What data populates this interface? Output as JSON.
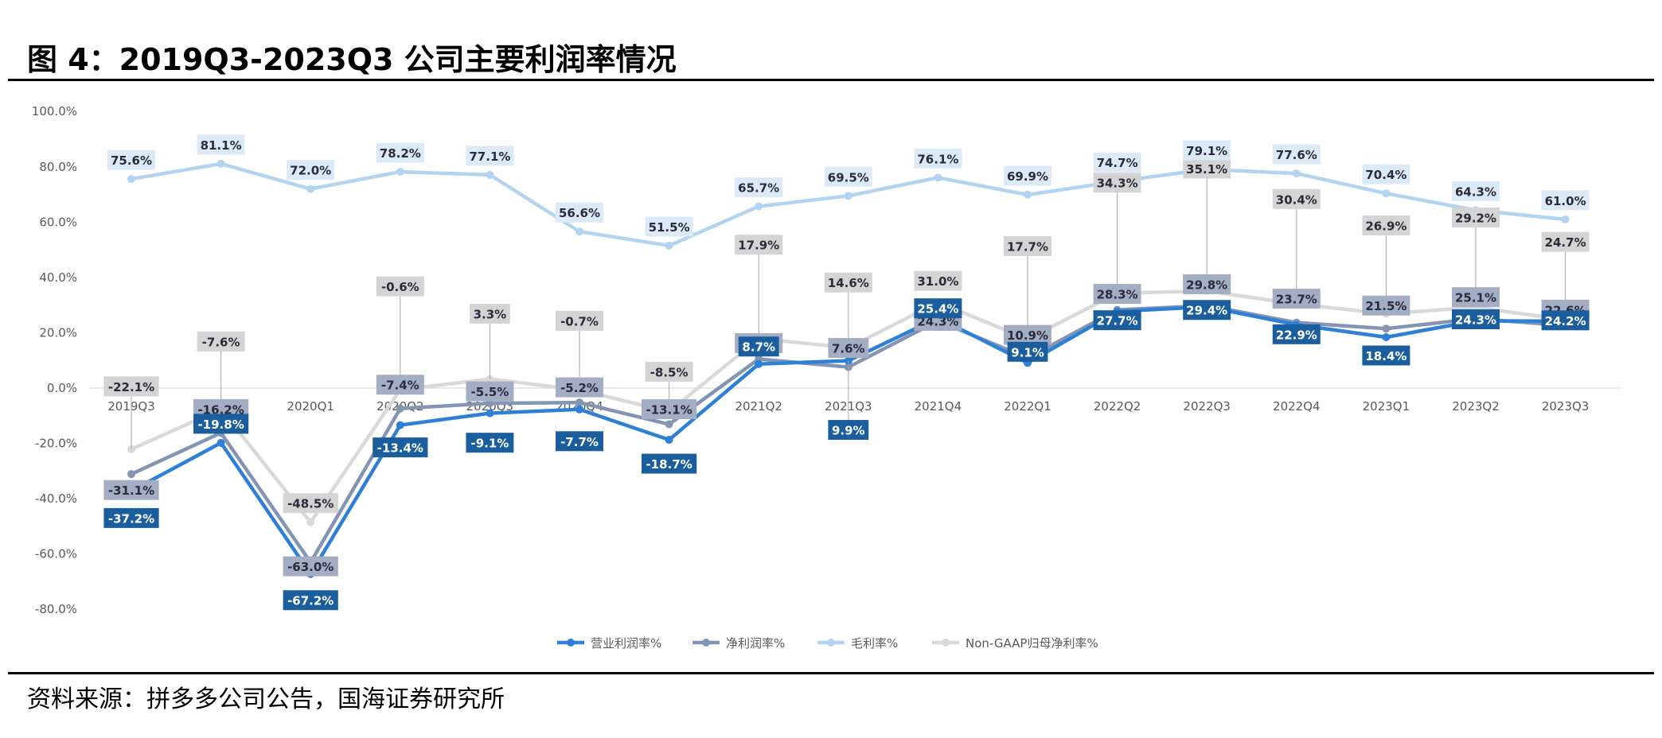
{
  "title": "图 4：2019Q3-2023Q3 公司主要利润率情况",
  "source": "资料来源：拼多多公司公告，国海证券研究所",
  "chart_data": {
    "type": "line",
    "categories": [
      "2019Q3",
      "2019Q4",
      "2020Q1",
      "2020Q2",
      "2020Q3",
      "2020Q4",
      "2021Q1",
      "2021Q2",
      "2021Q3",
      "2021Q4",
      "2022Q1",
      "2022Q2",
      "2022Q3",
      "2022Q4",
      "2023Q1",
      "2023Q2",
      "2023Q3"
    ],
    "ylim": [
      -80,
      100
    ],
    "yticks": [
      -80,
      -60,
      -40,
      -20,
      0,
      20,
      40,
      60,
      80,
      100
    ],
    "ytick_labels": [
      "-80.0%",
      "-60.0%",
      "-40.0%",
      "-20.0%",
      "0.0%",
      "20.0%",
      "40.0%",
      "60.0%",
      "80.0%",
      "100.0%"
    ],
    "grid": false,
    "legend_position": "bottom-center",
    "series": [
      {
        "name": "营业利润率%",
        "color": "#2E7FD6",
        "label_bg": "#1B5E9E",
        "label_fg": "#ffffff",
        "values": [
          -37.2,
          -19.8,
          -67.2,
          -13.4,
          -9.1,
          -7.7,
          -18.7,
          8.7,
          9.9,
          25.4,
          9.1,
          27.7,
          29.4,
          22.9,
          18.4,
          24.3,
          24.2
        ],
        "labels": [
          "-37.2%",
          "-19.8%",
          "-67.2%",
          "-13.4%",
          "-9.1%",
          "-7.7%",
          "-18.7%",
          "8.7%",
          "9.9%",
          "25.4%",
          "9.1%",
          "27.7%",
          "29.4%",
          "22.9%",
          "18.4%",
          "24.3%",
          "24.2%"
        ]
      },
      {
        "name": "净利润率%",
        "color": "#8495B4",
        "label_bg": "#A3ADC4",
        "label_fg": "#2B2B3A",
        "values": [
          -31.1,
          -16.2,
          -63.0,
          -7.4,
          -5.5,
          -5.2,
          -13.1,
          10.5,
          7.6,
          24.3,
          10.9,
          28.3,
          29.8,
          23.7,
          21.5,
          25.1,
          22.6
        ],
        "labels": [
          "-31.1%",
          "-16.2%",
          "-63.0%",
          "-7.4%",
          "-5.5%",
          "-5.2%",
          "-13.1%",
          "10.5%",
          "7.6%",
          "24.3%",
          "10.9%",
          "28.3%",
          "29.8%",
          "23.7%",
          "21.5%",
          "25.1%",
          "22.6%"
        ]
      },
      {
        "name": "毛利率%",
        "color": "#B3D4F0",
        "label_bg": "#DCEAF7",
        "label_fg": "#2B2B3A",
        "values": [
          75.6,
          81.1,
          72.0,
          78.2,
          77.1,
          56.6,
          51.5,
          65.7,
          69.5,
          76.1,
          69.9,
          74.7,
          79.1,
          77.6,
          70.4,
          64.3,
          61.0
        ],
        "labels": [
          "75.6%",
          "81.1%",
          "72.0%",
          "78.2%",
          "77.1%",
          "56.6%",
          "51.5%",
          "65.7%",
          "69.5%",
          "76.1%",
          "69.9%",
          "74.7%",
          "79.1%",
          "77.6%",
          "70.4%",
          "64.3%",
          "61.0%"
        ]
      },
      {
        "name": "Non-GAAP归母净利率%",
        "color": "#D9D9D9",
        "label_bg": "#D4D4D4",
        "label_fg": "#2B2B3A",
        "values": [
          -22.1,
          -7.6,
          -48.5,
          -0.6,
          3.3,
          -0.7,
          -8.5,
          17.9,
          14.6,
          31.0,
          17.7,
          34.3,
          35.1,
          30.4,
          26.9,
          29.2,
          24.7
        ],
        "labels": [
          "-22.1%",
          "-7.6%",
          "-48.5%",
          "-0.6%",
          "3.3%",
          "-0.7%",
          "-8.5%",
          "17.9%",
          "14.6%",
          "31.0%",
          "17.7%",
          "34.3%",
          "35.1%",
          "30.4%",
          "26.9%",
          "29.2%",
          "24.7%"
        ]
      }
    ]
  }
}
